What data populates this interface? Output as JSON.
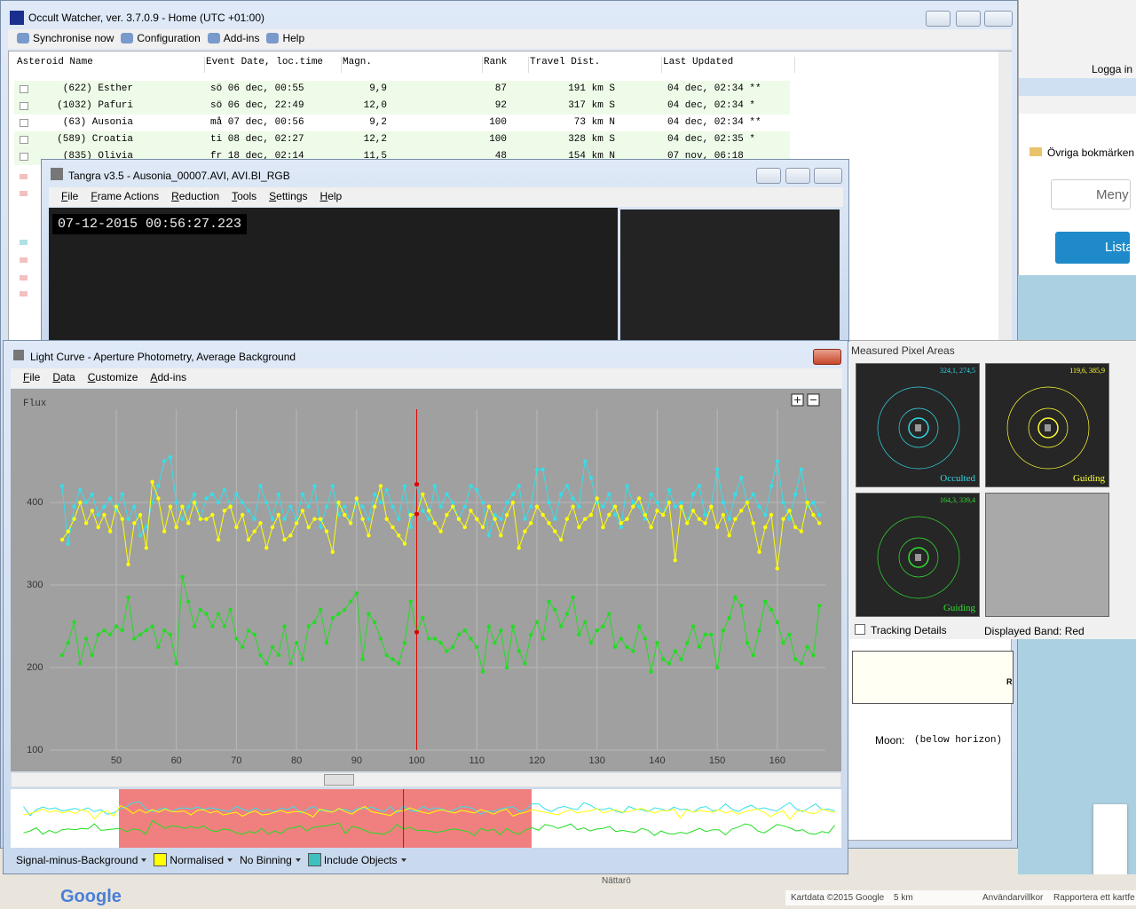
{
  "browser": {
    "login": "Logga in",
    "bookmarks": "Övriga bokmärken",
    "menu": "Meny",
    "list": "Lista"
  },
  "map": {
    "place": "Nättarö",
    "brand": "Google",
    "attribution": [
      "Kartdata ©2015 Google",
      "5 km",
      "Användarvillkor",
      "Rapportera ett kartfe"
    ]
  },
  "occult_watcher": {
    "title": "Occult Watcher, ver. 3.7.0.9 - Home (UTC +01:00)",
    "toolbar": [
      "Synchronise now",
      "Configuration",
      "Add-ins",
      "Help"
    ],
    "headers": [
      "Asteroid Name",
      "Event Date, loc.time",
      "Magn.",
      "Rank",
      "Travel Dist.",
      "Last Updated"
    ],
    "rows": [
      [
        "(622) Esther",
        "sö 06 dec, 00:55",
        "9,9",
        "87",
        "191 km S",
        "04 dec, 02:34 **"
      ],
      [
        "(1032) Pafuri",
        "sö 06 dec, 22:49",
        "12,0",
        "92",
        "317 km S",
        "04 dec, 02:34 *"
      ],
      [
        "(63) Ausonia",
        "må 07 dec, 00:56",
        "9,2",
        "100",
        "73 km N",
        "04 dec, 02:34 **"
      ],
      [
        "(589) Croatia",
        "ti 08 dec, 02:27",
        "12,2",
        "100",
        "328 km S",
        "04 dec, 02:35 *"
      ],
      [
        "(835) Olivia",
        "fr 18 dec, 02:14",
        "11,5",
        "48",
        "154 km N",
        "07 nov, 06:18"
      ]
    ],
    "details_label": "R",
    "moon_label": "Moon:",
    "moon_value": "(below horizon)"
  },
  "tangra": {
    "title": "Tangra v3.5 - Ausonia_00007.AVI, AVI.BI_RGB",
    "menu": [
      "File",
      "Frame Actions",
      "Reduction",
      "Tools",
      "Settings",
      "Help"
    ],
    "timestamp": "07-12-2015 00:56:27.223"
  },
  "light_curve": {
    "title": "Light Curve - Aperture Photometry, Average Background",
    "menu": [
      "File",
      "Data",
      "Customize",
      "Add-ins"
    ],
    "footer": [
      "Signal-minus-Background",
      "Normalised",
      "No Binning",
      "Include Objects"
    ]
  },
  "pixel_areas": {
    "title": "Measured Pixel Areas",
    "cells": [
      {
        "coords": "324,1, 274,5",
        "label": "Occulted",
        "color": "#33d6e6"
      },
      {
        "coords": "119,6, 385,9",
        "label": "Guiding",
        "color": "#ffff33"
      },
      {
        "coords": "164,3, 339,4",
        "label": "Guiding",
        "color": "#33dd33"
      }
    ],
    "tracking": "Tracking Details",
    "band": "Displayed Band: Red"
  },
  "chart_data": {
    "type": "line",
    "y_label": "Flux",
    "xlim": [
      39,
      168
    ],
    "ylim": [
      100,
      513
    ],
    "xticks": [
      50,
      60,
      70,
      80,
      90,
      100,
      110,
      120,
      130,
      140,
      150,
      160
    ],
    "yticks": [
      100,
      200,
      300,
      400
    ],
    "grid": true,
    "cursor_x": 100,
    "cursor_color": "#e00000",
    "x": [
      41,
      42,
      43,
      44,
      45,
      46,
      47,
      48,
      49,
      50,
      51,
      52,
      53,
      54,
      55,
      56,
      57,
      58,
      59,
      60,
      61,
      62,
      63,
      64,
      65,
      66,
      67,
      68,
      69,
      70,
      71,
      72,
      73,
      74,
      75,
      76,
      77,
      78,
      79,
      80,
      81,
      82,
      83,
      84,
      85,
      86,
      87,
      88,
      89,
      90,
      91,
      92,
      93,
      94,
      95,
      96,
      97,
      98,
      99,
      100,
      101,
      102,
      103,
      104,
      105,
      106,
      107,
      108,
      109,
      110,
      111,
      112,
      113,
      114,
      115,
      116,
      117,
      118,
      119,
      120,
      121,
      122,
      123,
      124,
      125,
      126,
      127,
      128,
      129,
      130,
      131,
      132,
      133,
      134,
      135,
      136,
      137,
      138,
      139,
      140,
      141,
      142,
      143,
      144,
      145,
      146,
      147,
      148,
      149,
      150,
      151,
      152,
      153,
      154,
      155,
      156,
      157,
      158,
      159,
      160,
      161,
      162,
      163,
      164,
      165,
      166,
      167
    ],
    "series": [
      {
        "color": "#33e0ea",
        "values": [
          420,
          350,
          395,
          415,
          400,
          410,
          385,
          395,
          405,
          390,
          410,
          380,
          395,
          360,
          370,
          400,
          420,
          450,
          455,
          400,
          380,
          395,
          410,
          380,
          405,
          410,
          400,
          415,
          395,
          410,
          400,
          390,
          380,
          420,
          400,
          380,
          410,
          380,
          395,
          380,
          410,
          395,
          420,
          370,
          395,
          420,
          385,
          395,
          375,
          400,
          395,
          380,
          410,
          400,
          415,
          395,
          380,
          420,
          370,
          422,
          390,
          380,
          420,
          395,
          410,
          400,
          380,
          395,
          420,
          415,
          400,
          360,
          385,
          380,
          400,
          410,
          420,
          380,
          395,
          440,
          440,
          400,
          380,
          410,
          420,
          405,
          395,
          450,
          430,
          400,
          395,
          410,
          385,
          370,
          420,
          400,
          395,
          380,
          410,
          400,
          385,
          415,
          395,
          400,
          375,
          410,
          420,
          385,
          395,
          440,
          400,
          380,
          410,
          430,
          400,
          410,
          395,
          385,
          420,
          450,
          400,
          380,
          410,
          440,
          395,
          400,
          385
        ]
      },
      {
        "color": "#ffff00",
        "values": [
          355,
          365,
          380,
          400,
          375,
          390,
          370,
          385,
          365,
          395,
          380,
          325,
          375,
          385,
          345,
          425,
          405,
          365,
          395,
          370,
          395,
          375,
          400,
          380,
          380,
          385,
          355,
          390,
          395,
          370,
          385,
          355,
          365,
          375,
          345,
          370,
          385,
          355,
          360,
          375,
          390,
          370,
          380,
          380,
          365,
          340,
          400,
          385,
          375,
          405,
          380,
          360,
          395,
          420,
          380,
          370,
          360,
          350,
          385,
          386,
          410,
          390,
          375,
          365,
          385,
          395,
          380,
          370,
          390,
          380,
          370,
          395,
          380,
          360,
          385,
          400,
          345,
          365,
          375,
          395,
          385,
          375,
          365,
          355,
          380,
          395,
          370,
          380,
          385,
          405,
          370,
          385,
          395,
          375,
          380,
          395,
          405,
          385,
          370,
          390,
          385,
          400,
          330,
          395,
          375,
          390,
          380,
          375,
          395,
          370,
          385,
          360,
          380,
          390,
          400,
          375,
          340,
          370,
          385,
          320,
          380,
          390,
          370,
          365,
          400,
          385,
          375
        ]
      },
      {
        "color": "#22dd22",
        "values": [
          215,
          230,
          255,
          205,
          235,
          215,
          240,
          245,
          240,
          250,
          245,
          285,
          235,
          240,
          245,
          250,
          225,
          245,
          240,
          205,
          310,
          280,
          250,
          270,
          265,
          250,
          265,
          250,
          270,
          235,
          225,
          245,
          240,
          215,
          205,
          225,
          215,
          250,
          205,
          230,
          210,
          250,
          255,
          270,
          230,
          260,
          265,
          270,
          280,
          290,
          210,
          265,
          255,
          235,
          215,
          210,
          205,
          230,
          280,
          243,
          260,
          235,
          235,
          230,
          220,
          225,
          240,
          245,
          235,
          225,
          195,
          250,
          230,
          245,
          200,
          250,
          220,
          205,
          240,
          255,
          235,
          280,
          270,
          250,
          265,
          285,
          240,
          255,
          230,
          245,
          250,
          265,
          225,
          235,
          225,
          220,
          250,
          235,
          195,
          230,
          210,
          205,
          220,
          210,
          230,
          250,
          225,
          240,
          240,
          200,
          245,
          260,
          285,
          275,
          230,
          215,
          245,
          280,
          270,
          255,
          230,
          240,
          210,
          205,
          225,
          215,
          275
        ]
      }
    ]
  }
}
